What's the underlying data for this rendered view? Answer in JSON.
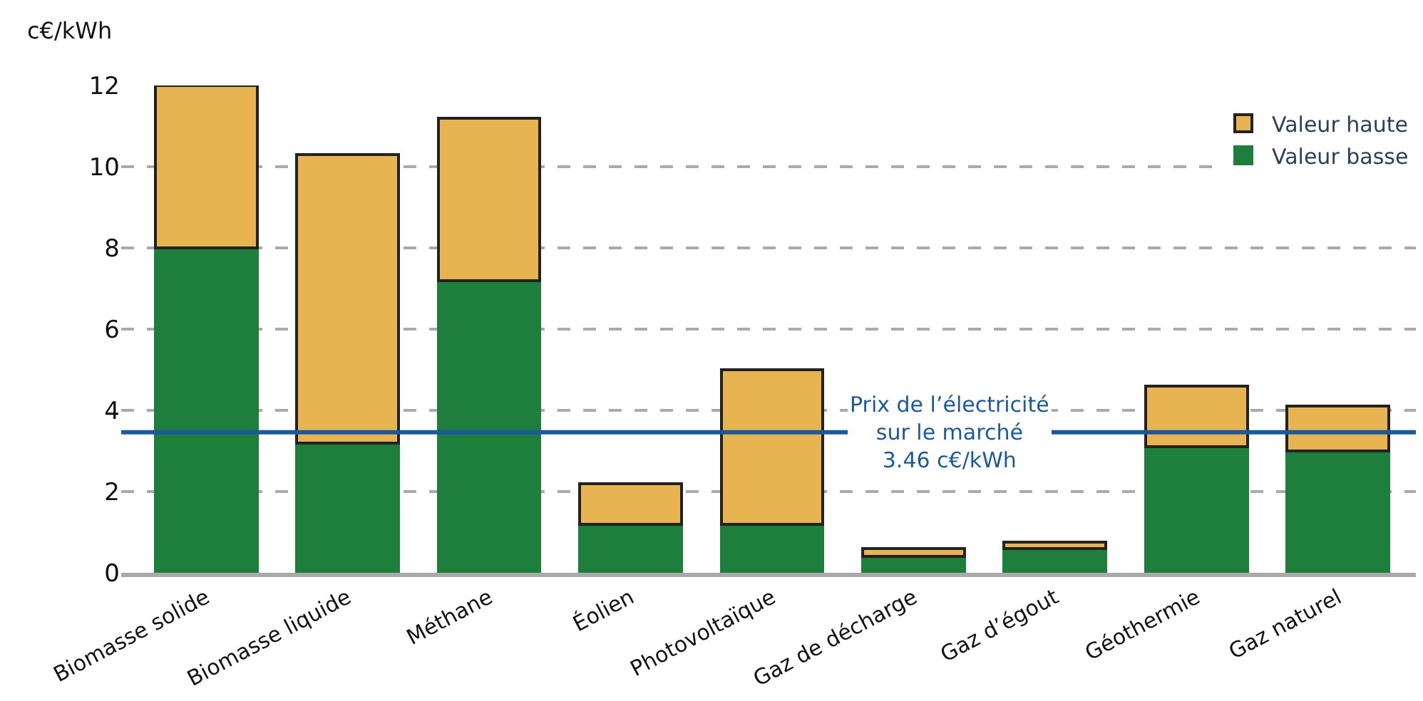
{
  "chart_data": {
    "type": "bar",
    "stacked": true,
    "ylabel": "c€/kWh",
    "categories": [
      "Biomasse solide",
      "Biomasse liquide",
      "Méthane",
      "Éolien",
      "Photovoltaïque",
      "Gaz de décharge",
      "Gaz d’égout",
      "Géothermie",
      "Gaz naturel"
    ],
    "series": [
      {
        "name": "Valeur basse",
        "color": "#1e7e3c",
        "values": [
          8.0,
          3.2,
          7.2,
          1.2,
          1.2,
          0.4,
          0.6,
          3.1,
          3.0
        ]
      },
      {
        "name": "Valeur haute",
        "color": "#e8b452",
        "values": [
          4.0,
          7.1,
          4.0,
          1.0,
          3.8,
          0.2,
          0.15,
          1.5,
          1.1
        ]
      }
    ],
    "ylim": [
      0,
      12
    ],
    "yticks": [
      0,
      2,
      4,
      6,
      8,
      10,
      12
    ],
    "grid": "y",
    "legend": "top right",
    "ref_lines": [
      {
        "axis": "y",
        "value": 3.46,
        "label": "Prix de l’électricité\nsur le marché\n3.46 c€/kWh",
        "color": "#1a5a9c"
      }
    ]
  }
}
